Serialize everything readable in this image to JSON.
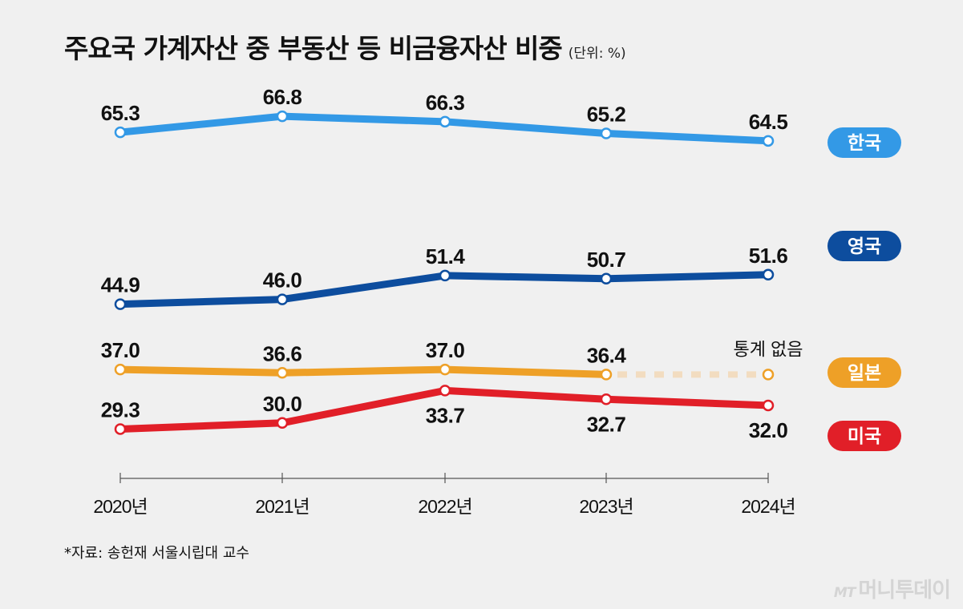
{
  "title": "주요국 가계자산 중 부동산 등 비금융자산 비중",
  "unit": "(단위: %)",
  "source": "*자료: 송헌재 서울시립대 교수",
  "watermark": {
    "logo": "MT",
    "text": "머니투데이"
  },
  "no_data_label": "통계 없음",
  "chart_data": {
    "type": "line",
    "categories": [
      "2020년",
      "2021년",
      "2022년",
      "2023년",
      "2024년"
    ],
    "series": [
      {
        "name": "한국",
        "color": "#3399e6",
        "values": [
          65.3,
          66.8,
          66.3,
          65.2,
          64.5
        ]
      },
      {
        "name": "영국",
        "color": "#0d4d9e",
        "values": [
          44.9,
          46.0,
          51.4,
          50.7,
          51.6
        ]
      },
      {
        "name": "일본",
        "color": "#eea027",
        "values": [
          37.0,
          36.6,
          37.0,
          36.4,
          null
        ]
      },
      {
        "name": "미국",
        "color": "#e11f28",
        "values": [
          29.3,
          30.0,
          33.7,
          32.7,
          32.0
        ]
      }
    ],
    "legend": "right",
    "grid": false
  }
}
